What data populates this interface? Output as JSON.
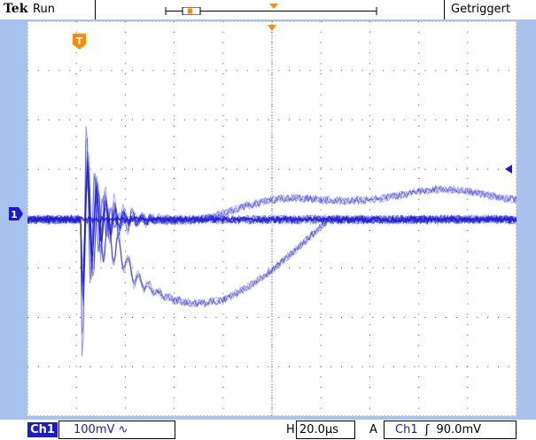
{
  "status": {
    "brand": "Tek",
    "run_state": "Run",
    "trigger_state": "Getriggert"
  },
  "markers": {
    "trigger_position": "T",
    "channel": "1"
  },
  "bottom": {
    "channel": "Ch1",
    "volts_per_div": "100mV",
    "coupling_symbol": "∿",
    "horizontal_label": "H",
    "time_per_div": "20.0µs",
    "trigger_mode": "A",
    "trigger_source": "Ch1",
    "trigger_slope_symbol": "ʃ",
    "trigger_level": "90.0mV"
  },
  "colors": {
    "background": "#aac3ee",
    "trace": "#1a1ad6",
    "marker": "#ff8c00",
    "screen": "#ffffff"
  }
}
